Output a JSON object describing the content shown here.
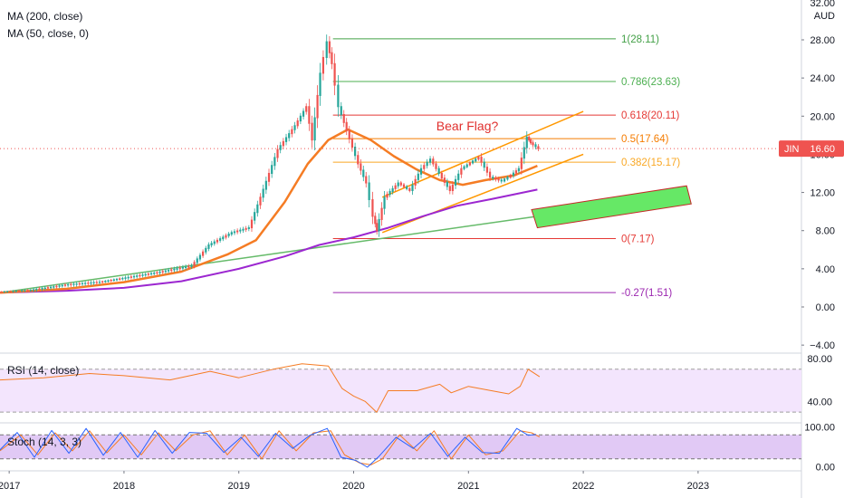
{
  "chart_data": {
    "type": "line",
    "price_scale": {
      "unit": "AUD",
      "top_label": "32.00",
      "ticks": [
        "28.00",
        "24.00",
        "20.00",
        "16.00",
        "12.00",
        "8.00",
        "4.00",
        "0.00",
        "−4.00"
      ],
      "range": [
        -4.5,
        31
      ]
    },
    "years": [
      "2017",
      "2018",
      "2019",
      "2020",
      "2021",
      "2022",
      "2023"
    ],
    "indicators": {
      "ma200": "MA (200, close)",
      "ma50": "MA (50, close, 0)"
    },
    "price_series": {
      "name": "JIN",
      "last_price": "16.60",
      "color_up": "#26a69a",
      "color_down": "#ef5350",
      "points": [
        [
          2016.92,
          1.55
        ],
        [
          2017.2,
          1.75
        ],
        [
          2017.5,
          2.3
        ],
        [
          2017.8,
          2.6
        ],
        [
          2018.0,
          3.0
        ],
        [
          2018.3,
          3.6
        ],
        [
          2018.6,
          4.3
        ],
        [
          2018.75,
          6.5
        ],
        [
          2018.95,
          7.8
        ],
        [
          2019.1,
          8.3
        ],
        [
          2019.2,
          11.5
        ],
        [
          2019.35,
          16.5
        ],
        [
          2019.5,
          19.0
        ],
        [
          2019.6,
          21.0
        ],
        [
          2019.65,
          17.5
        ],
        [
          2019.72,
          24.5
        ],
        [
          2019.78,
          27.8
        ],
        [
          2019.82,
          25.5
        ],
        [
          2019.88,
          21.0
        ],
        [
          2019.95,
          18.5
        ],
        [
          2020.05,
          15.0
        ],
        [
          2020.12,
          13.0
        ],
        [
          2020.18,
          9.5
        ],
        [
          2020.21,
          8.0
        ],
        [
          2020.28,
          11.5
        ],
        [
          2020.4,
          13.0
        ],
        [
          2020.5,
          12.2
        ],
        [
          2020.6,
          14.5
        ],
        [
          2020.68,
          15.5
        ],
        [
          2020.78,
          13.5
        ],
        [
          2020.85,
          12.2
        ],
        [
          2020.95,
          14.5
        ],
        [
          2021.1,
          15.7
        ],
        [
          2021.2,
          13.6
        ],
        [
          2021.3,
          13.2
        ],
        [
          2021.38,
          13.8
        ],
        [
          2021.45,
          14.5
        ],
        [
          2021.52,
          17.8
        ],
        [
          2021.55,
          17.2
        ],
        [
          2021.62,
          16.6
        ]
      ]
    },
    "ma50": {
      "color": "#f57c24",
      "points": [
        [
          2016.92,
          1.5
        ],
        [
          2017.5,
          1.9
        ],
        [
          2018.0,
          2.6
        ],
        [
          2018.5,
          3.7
        ],
        [
          2018.9,
          5.5
        ],
        [
          2019.15,
          7.0
        ],
        [
          2019.4,
          11.0
        ],
        [
          2019.6,
          15.0
        ],
        [
          2019.78,
          17.5
        ],
        [
          2019.95,
          18.6
        ],
        [
          2020.15,
          17.5
        ],
        [
          2020.35,
          15.8
        ],
        [
          2020.55,
          14.4
        ],
        [
          2020.75,
          13.3
        ],
        [
          2020.95,
          12.8
        ],
        [
          2021.15,
          13.3
        ],
        [
          2021.4,
          13.8
        ],
        [
          2021.6,
          14.8
        ]
      ]
    },
    "ma200": {
      "color": "#9c27d0",
      "points": [
        [
          2016.92,
          1.5
        ],
        [
          2017.5,
          1.7
        ],
        [
          2018.0,
          2.0
        ],
        [
          2018.5,
          2.7
        ],
        [
          2019.0,
          4.0
        ],
        [
          2019.4,
          5.3
        ],
        [
          2019.7,
          6.5
        ],
        [
          2020.0,
          7.3
        ],
        [
          2020.3,
          8.3
        ],
        [
          2020.6,
          9.5
        ],
        [
          2020.9,
          10.6
        ],
        [
          2021.2,
          11.3
        ],
        [
          2021.6,
          12.3
        ]
      ]
    },
    "fib_levels": [
      {
        "label": "1(28.11)",
        "value": 28.11,
        "color": "#43a047"
      },
      {
        "label": "0.786(23.63)",
        "value": 23.63,
        "color": "#4caf50"
      },
      {
        "label": "0.618(20.11)",
        "value": 20.11,
        "color": "#e53935"
      },
      {
        "label": "0.5(17.64)",
        "value": 17.64,
        "color": "#f57c00"
      },
      {
        "label": "0.382(15.17)",
        "value": 15.17,
        "color": "#f9a825"
      },
      {
        "label": "0(7.17)",
        "value": 7.17,
        "color": "#e53935"
      },
      {
        "label": "-0.27(1.51)",
        "value": 1.51,
        "color": "#9c27b0"
      }
    ],
    "fib_start_x": 2019.82,
    "trend_line": {
      "color": "#66bb6a",
      "points": [
        [
          2016.92,
          1.5
        ],
        [
          2021.6,
          9.5
        ]
      ]
    },
    "channel_upper": {
      "color": "#ff9800",
      "points": [
        [
          2020.25,
          11.5
        ],
        [
          2022.0,
          20.5
        ]
      ]
    },
    "channel_lower": {
      "color": "#ff9800",
      "points": [
        [
          2020.25,
          7.8
        ],
        [
          2022.0,
          16.0
        ]
      ]
    },
    "target_box": {
      "color": "#66e866",
      "border": "#c62828",
      "corners": [
        [
          2021.55,
          10.2
        ],
        [
          2022.9,
          12.7
        ],
        [
          2022.94,
          10.8
        ],
        [
          2021.6,
          8.3
        ]
      ]
    },
    "annotation": "Bear Flag?",
    "annotation_at": [
      2020.72,
      18.5
    ],
    "rsi": {
      "label": "RSI (14, close)",
      "ticks": [
        "80.00",
        "40.00"
      ],
      "range": [
        20,
        85
      ],
      "band": [
        30,
        70
      ],
      "color": "#f57c24",
      "points": [
        [
          2016.92,
          60
        ],
        [
          2017.3,
          62
        ],
        [
          2017.7,
          66
        ],
        [
          2018.0,
          64
        ],
        [
          2018.4,
          60
        ],
        [
          2018.75,
          68
        ],
        [
          2019.0,
          62
        ],
        [
          2019.3,
          70
        ],
        [
          2019.55,
          75
        ],
        [
          2019.78,
          73
        ],
        [
          2019.9,
          52
        ],
        [
          2020.0,
          45
        ],
        [
          2020.1,
          40
        ],
        [
          2020.2,
          30
        ],
        [
          2020.3,
          50
        ],
        [
          2020.55,
          50
        ],
        [
          2020.75,
          56
        ],
        [
          2020.85,
          48
        ],
        [
          2021.0,
          54
        ],
        [
          2021.2,
          50
        ],
        [
          2021.35,
          47
        ],
        [
          2021.45,
          54
        ],
        [
          2021.52,
          70
        ],
        [
          2021.62,
          63
        ]
      ]
    },
    "stoch": {
      "label": "Stoch (14, 3, 3)",
      "ticks": [
        "100.00",
        "0.00"
      ],
      "range": [
        -10,
        110
      ],
      "band": [
        20,
        80
      ],
      "k_color": "#2962ff",
      "d_color": "#f57c24",
      "points": [
        [
          2016.92,
          40
        ],
        [
          2017.1,
          80
        ],
        [
          2017.25,
          30
        ],
        [
          2017.4,
          85
        ],
        [
          2017.55,
          40
        ],
        [
          2017.7,
          90
        ],
        [
          2017.85,
          35
        ],
        [
          2018.0,
          80
        ],
        [
          2018.15,
          30
        ],
        [
          2018.3,
          85
        ],
        [
          2018.45,
          40
        ],
        [
          2018.6,
          80
        ],
        [
          2018.75,
          90
        ],
        [
          2018.9,
          30
        ],
        [
          2019.05,
          80
        ],
        [
          2019.2,
          20
        ],
        [
          2019.35,
          90
        ],
        [
          2019.5,
          40
        ],
        [
          2019.65,
          85
        ],
        [
          2019.8,
          90
        ],
        [
          2019.92,
          30
        ],
        [
          2020.05,
          10
        ],
        [
          2020.15,
          5
        ],
        [
          2020.25,
          20
        ],
        [
          2020.4,
          80
        ],
        [
          2020.55,
          40
        ],
        [
          2020.7,
          90
        ],
        [
          2020.85,
          20
        ],
        [
          2021.0,
          80
        ],
        [
          2021.15,
          30
        ],
        [
          2021.3,
          40
        ],
        [
          2021.45,
          90
        ],
        [
          2021.55,
          85
        ],
        [
          2021.62,
          75
        ]
      ]
    }
  }
}
